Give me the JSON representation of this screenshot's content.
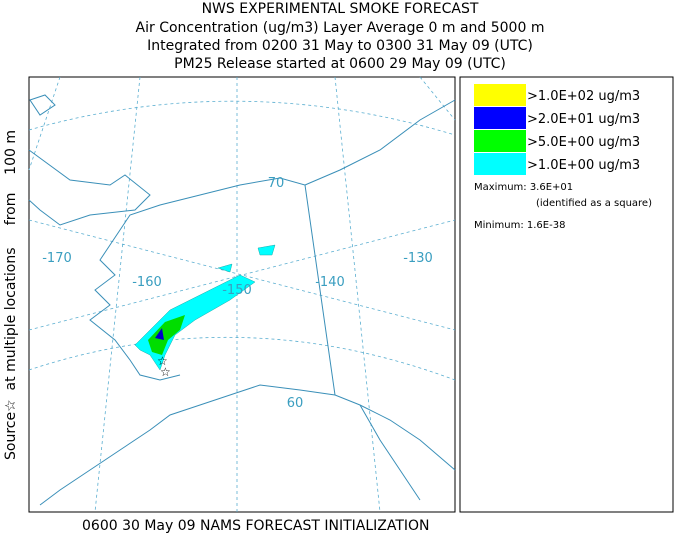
{
  "header": {
    "lines": [
      "NWS EXPERIMENTAL SMOKE FORECAST",
      "Air Concentration (ug/m3) Layer Average    0 m and  5000 m",
      "Integrated from 0200 31 May to 0300 31 May 09 (UTC)",
      "PM25 Release started at 0600 29 May 09 (UTC)"
    ]
  },
  "side_label": "Source☆  at multiple locations     from    100 m",
  "footer": "0600 30 May 09 NAMS FORECAST INITIALIZATION",
  "legend": {
    "items": [
      {
        "label": ">1.0E+02 ug/m3",
        "color": "#ffff00"
      },
      {
        "label": ">2.0E+01 ug/m3",
        "color": "#0000ff"
      },
      {
        "label": ">5.0E+00 ug/m3",
        "color": "#00ff00"
      },
      {
        "label": ">1.0E+00 ug/m3",
        "color": "#00ffff"
      }
    ]
  },
  "stats": {
    "maximum": "Maximum: 3.6E+01",
    "maximum_note": "(identified as a square)",
    "minimum": "Minimum: 1.6E-38"
  },
  "map": {
    "labels": [
      "-170",
      "-160",
      "-150",
      "-140",
      "-130",
      "70",
      "60"
    ]
  }
}
